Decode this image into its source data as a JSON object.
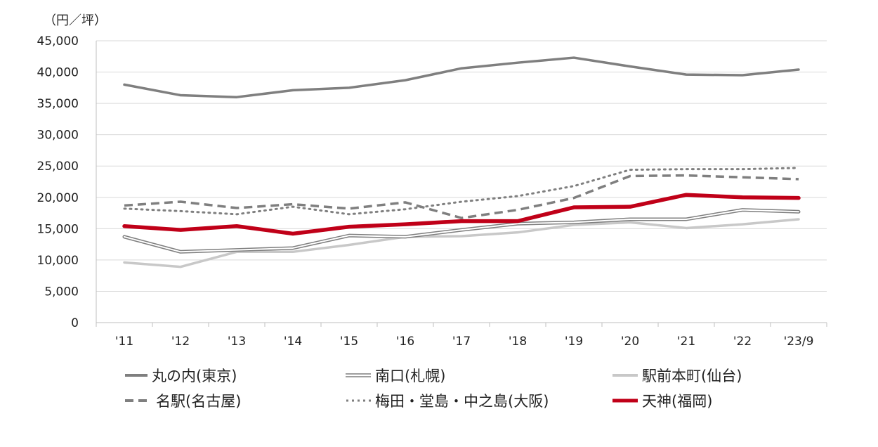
{
  "chart_data": {
    "type": "line",
    "unit_label": "（円／坪）",
    "categories": [
      "'11",
      "'12",
      "'13",
      "'14",
      "'15",
      "'16",
      "'17",
      "'18",
      "'19",
      "'20",
      "'21",
      "'22",
      "'23/9"
    ],
    "ylim": [
      0,
      45000
    ],
    "yticks": [
      0,
      5000,
      10000,
      15000,
      20000,
      25000,
      30000,
      35000,
      40000,
      45000
    ],
    "ytick_labels": [
      "0",
      "5,000",
      "10,000",
      "15,000",
      "20,000",
      "25,000",
      "30,000",
      "35,000",
      "40,000",
      "45,000"
    ],
    "grid": true,
    "legend_position": "bottom",
    "series": [
      {
        "name": "丸の内(東京)",
        "style": "solid-thick",
        "color": "#7f7f7f",
        "values": [
          38000,
          36300,
          36000,
          37100,
          37500,
          38700,
          40600,
          41500,
          42300,
          40900,
          39600,
          39500,
          40400
        ]
      },
      {
        "name": "南口(札幌)",
        "style": "double",
        "color": "#7f7f7f",
        "values": [
          13700,
          11300,
          11600,
          11900,
          13900,
          13700,
          14800,
          15800,
          16000,
          16500,
          16500,
          18000,
          17700
        ]
      },
      {
        "name": "駅前本町(仙台)",
        "style": "solid",
        "color": "#c8c8c8",
        "values": [
          9600,
          8900,
          11300,
          11300,
          12400,
          13700,
          13800,
          14400,
          15600,
          16000,
          15100,
          15700,
          16500
        ]
      },
      {
        "name": "名駅(名古屋)",
        "style": "dashed",
        "color": "#7f7f7f",
        "values": [
          18700,
          19300,
          18300,
          18900,
          18200,
          19200,
          16700,
          18000,
          19900,
          23400,
          23500,
          23200,
          22900
        ]
      },
      {
        "name": "梅田・堂島・中之島(大阪)",
        "style": "dotted",
        "color": "#7f7f7f",
        "values": [
          18200,
          17800,
          17300,
          18500,
          17300,
          18100,
          19300,
          20200,
          21800,
          24400,
          24500,
          24500,
          24700
        ]
      },
      {
        "name": "天神(福岡)",
        "style": "solid-bold",
        "color": "#c00018",
        "values": [
          15400,
          14800,
          15400,
          14200,
          15300,
          15700,
          16200,
          16200,
          18400,
          18500,
          20400,
          20000,
          19900
        ]
      }
    ]
  }
}
